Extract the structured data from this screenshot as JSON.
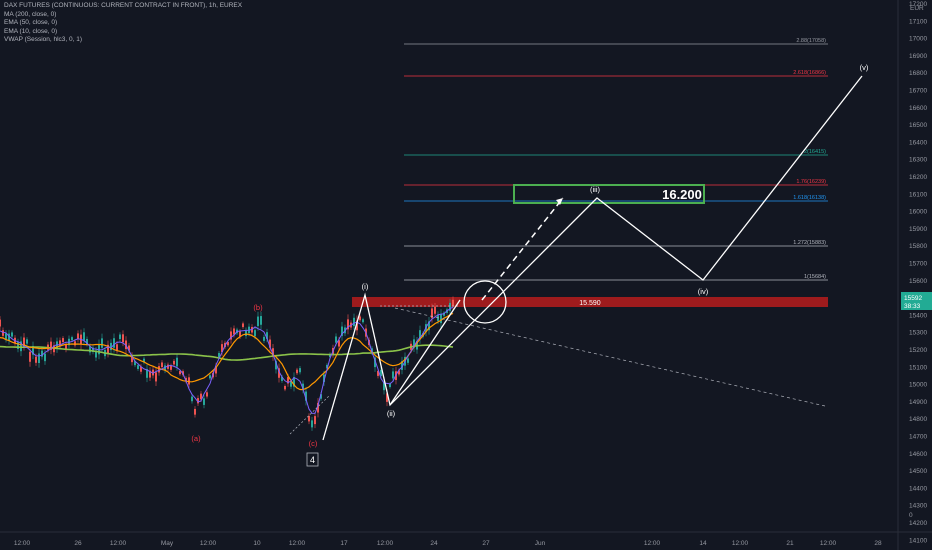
{
  "legend": {
    "title": "DAX FUTURES (CONTINUOUS: CURRENT CONTRACT IN FRONT), 1h, EUREX",
    "indicators": [
      "MA (200, close, 0)",
      "EMA (50, close, 0)",
      "EMA (10, close, 0)",
      "VWAP (Session, hlc3, 0, 1)"
    ]
  },
  "currency": "EUR",
  "price_axis": {
    "ticks": [
      "17200",
      "17100",
      "17000",
      "16900",
      "16800",
      "16700",
      "16600",
      "16500",
      "16400",
      "16300",
      "16200",
      "16100",
      "16000",
      "15900",
      "15800",
      "15700",
      "15600",
      "15500",
      "15400",
      "15300",
      "15200",
      "15100",
      "15000",
      "14900",
      "14800",
      "14700",
      "14600",
      "14500",
      "14400",
      "14300",
      "14200",
      "14100",
      "0"
    ],
    "last_price": "15592",
    "countdown": "38:33"
  },
  "time_axis": {
    "ticks": [
      "12:00",
      "26",
      "12:00",
      "May",
      "12:00",
      "10",
      "12:00",
      "17",
      "12:00",
      "24",
      "27",
      "Jun",
      "12:00",
      "14",
      "12:00",
      "21",
      "12:00",
      "28"
    ]
  },
  "fib_levels": [
    {
      "label": "2.88(17058)",
      "color": "#9598a1"
    },
    {
      "label": "2.618(16866)",
      "color": "#f23645"
    },
    {
      "label": "2(16415)",
      "color": "#22ab94"
    },
    {
      "label": "1.76(16239)",
      "color": "#f23645"
    },
    {
      "label": "1.618(16138)",
      "color": "#2196f3"
    },
    {
      "label": "1.272(15883)",
      "color": "#b2b5be"
    },
    {
      "label": "1(15684)",
      "color": "#b2b5be"
    }
  ],
  "resistance_zone": {
    "label": "15.590"
  },
  "target_box": {
    "label": "16.200"
  },
  "waves": {
    "a": "(a)",
    "b": "(b)",
    "c": "(c)",
    "four": "4",
    "i": "(i)",
    "ii": "(ii)",
    "iii": "(iii)",
    "iv": "(iv)",
    "v": "(v)"
  },
  "colors": {
    "background": "#131722",
    "ma200": "#8bc34a",
    "ema50": "#ff9800",
    "ema10": "#7b61ff",
    "resistance": "#b71c1c",
    "target_box": "#4caf50"
  },
  "chart_data": {
    "type": "line",
    "title": "DAX FUTURES (CONTINUOUS: CURRENT CONTRACT IN FRONT), 1h, EUREX",
    "ylim": [
      14100,
      17200
    ],
    "x": [
      "12:00",
      "26",
      "12:00",
      "May",
      "12:00",
      "10",
      "12:00",
      "17",
      "12:00",
      "24",
      "27",
      "Jun",
      "12:00",
      "14",
      "12:00",
      "21",
      "12:00",
      "28"
    ],
    "series": [
      {
        "name": "Elliott wave projection",
        "points": [
          {
            "label": "(c)",
            "y": 14750
          },
          {
            "label": "(i)",
            "y": 15540
          },
          {
            "label": "(ii)",
            "y": 14990
          },
          {
            "label": "(iii)",
            "y": 16160
          },
          {
            "label": "(iv)",
            "y": 15700
          },
          {
            "label": "(v)",
            "y": 16880
          }
        ]
      }
    ]
  }
}
